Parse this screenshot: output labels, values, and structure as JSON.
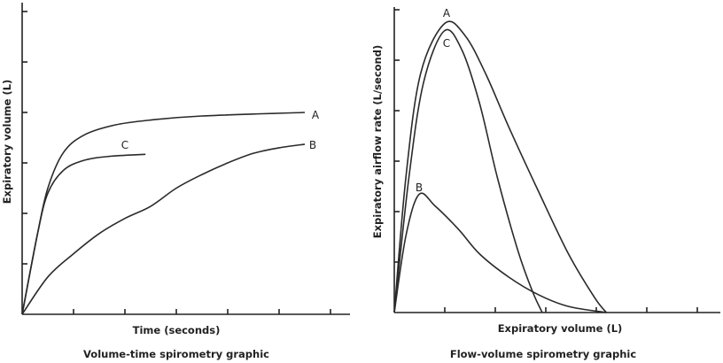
{
  "chart_data": [
    {
      "type": "line",
      "title": "Volume-time spirometry graphic",
      "xlabel": "Time (seconds)",
      "ylabel": "Expiratory volume (L)",
      "xlim": [
        0,
        6.5
      ],
      "ylim": [
        0,
        6
      ],
      "x_ticks": [
        1,
        2,
        3,
        4,
        5,
        6
      ],
      "y_ticks": [
        1,
        2,
        3,
        4,
        5,
        6
      ],
      "grid": false,
      "series": [
        {
          "name": "A",
          "points": [
            [
              0,
              0
            ],
            [
              0.3,
              1.6
            ],
            [
              0.5,
              2.5
            ],
            [
              0.8,
              3.2
            ],
            [
              1.2,
              3.55
            ],
            [
              1.8,
              3.75
            ],
            [
              2.5,
              3.85
            ],
            [
              3.5,
              3.93
            ],
            [
              5.5,
              4.0
            ]
          ]
        },
        {
          "name": "B",
          "points": [
            [
              0,
              0
            ],
            [
              0.5,
              0.74
            ],
            [
              1,
              1.2
            ],
            [
              1.5,
              1.6
            ],
            [
              2,
              1.9
            ],
            [
              2.5,
              2.14
            ],
            [
              3,
              2.5
            ],
            [
              3.5,
              2.77
            ],
            [
              4,
              3.0
            ],
            [
              4.5,
              3.19
            ],
            [
              5,
              3.3
            ],
            [
              5.5,
              3.37
            ]
          ]
        },
        {
          "name": "C",
          "points": [
            [
              0,
              0
            ],
            [
              0.3,
              1.6
            ],
            [
              0.5,
              2.4
            ],
            [
              0.8,
              2.85
            ],
            [
              1.2,
              3.05
            ],
            [
              1.7,
              3.13
            ],
            [
              2.4,
              3.17
            ]
          ]
        }
      ]
    },
    {
      "type": "line",
      "title": "Flow-volume spirometry graphic",
      "xlabel": "Expiratory volume (L)",
      "ylabel": "Expiratory airflow rate (L/second)",
      "xlim": [
        0,
        6.5
      ],
      "ylim": [
        0,
        6
      ],
      "x_ticks": [
        1,
        2,
        3,
        4,
        5,
        6
      ],
      "y_ticks": [
        1,
        2,
        3,
        4,
        5,
        6
      ],
      "grid": false,
      "series": [
        {
          "name": "A",
          "points": [
            [
              0,
              0
            ],
            [
              0.23,
              2.68
            ],
            [
              0.52,
              4.73
            ],
            [
              1.0,
              5.73
            ],
            [
              1.4,
              5.49
            ],
            [
              1.81,
              4.73
            ],
            [
              2.27,
              3.67
            ],
            [
              2.86,
              2.39
            ],
            [
              3.45,
              1.16
            ],
            [
              3.97,
              0.29
            ],
            [
              4.2,
              0
            ]
          ]
        },
        {
          "name": "B",
          "points": [
            [
              0,
              0
            ],
            [
              0.23,
              1.52
            ],
            [
              0.49,
              2.34
            ],
            [
              0.81,
              2.11
            ],
            [
              1.28,
              1.64
            ],
            [
              1.69,
              1.16
            ],
            [
              2.27,
              0.7
            ],
            [
              2.86,
              0.35
            ],
            [
              3.45,
              0.12
            ],
            [
              4.2,
              0
            ]
          ]
        },
        {
          "name": "C",
          "points": [
            [
              0,
              0
            ],
            [
              0.29,
              2.68
            ],
            [
              0.58,
              4.56
            ],
            [
              0.99,
              5.58
            ],
            [
              1.34,
              5.2
            ],
            [
              1.69,
              4.14
            ],
            [
              2.04,
              2.68
            ],
            [
              2.45,
              1.22
            ],
            [
              2.74,
              0.41
            ],
            [
              2.93,
              0
            ]
          ]
        }
      ]
    }
  ]
}
